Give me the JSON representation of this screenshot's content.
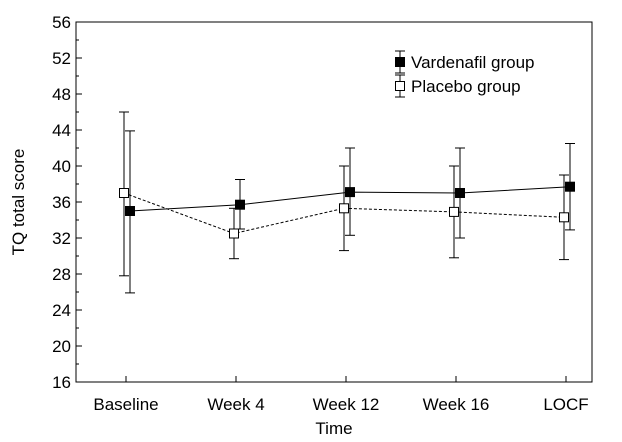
{
  "chart_data": {
    "type": "line",
    "title": "",
    "xlabel": "Time",
    "ylabel": "TQ total score",
    "categories": [
      "Baseline",
      "Week 4",
      "Week 12",
      "Week 16",
      "LOCF"
    ],
    "ylim": [
      16,
      56
    ],
    "yticks": [
      16,
      20,
      24,
      28,
      32,
      36,
      40,
      44,
      48,
      52,
      56
    ],
    "grid": false,
    "legend_position": "top-right",
    "series": [
      {
        "name": "Vardenafil group",
        "marker": "filled-square",
        "line_style": "solid",
        "color": "#000000",
        "values": [
          35.0,
          35.7,
          37.1,
          37.0,
          37.7
        ],
        "error_low": [
          25.9,
          33.0,
          32.3,
          32.0,
          32.9
        ],
        "error_high": [
          43.9,
          38.5,
          42.0,
          42.0,
          42.5
        ]
      },
      {
        "name": "Placebo group",
        "marker": "open-square",
        "line_style": "dashed",
        "color": "#000000",
        "values": [
          37.0,
          32.5,
          35.3,
          34.9,
          34.3
        ],
        "error_low": [
          27.8,
          29.7,
          30.6,
          29.8,
          29.6
        ],
        "error_high": [
          46.0,
          35.3,
          40.0,
          40.0,
          39.0
        ]
      }
    ]
  }
}
